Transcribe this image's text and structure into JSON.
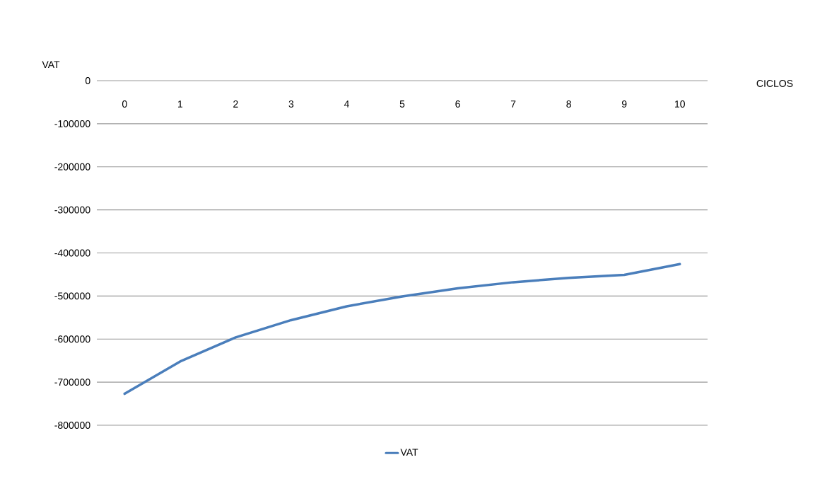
{
  "chart_data": {
    "type": "line",
    "xlabel": "CICLOS",
    "ylabel": "VAT",
    "categories": [
      "0",
      "1",
      "2",
      "3",
      "4",
      "5",
      "6",
      "7",
      "8",
      "9",
      "10"
    ],
    "series": [
      {
        "name": "VAT",
        "color": "#4a7ebb",
        "values": [
          -727000,
          -652000,
          -596000,
          -556000,
          -524000,
          -501000,
          -482000,
          -468000,
          -458000,
          -451000,
          -426000
        ]
      }
    ],
    "ylim": [
      -800000,
      0
    ],
    "yticks": [
      -800000,
      -700000,
      -600000,
      -500000,
      -400000,
      -300000,
      -200000,
      -100000,
      0
    ],
    "grid": "y",
    "legend": "bottom",
    "marker": "none",
    "line_style": "solid"
  }
}
